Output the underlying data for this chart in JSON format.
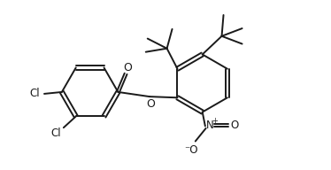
{
  "bg_color": "#ffffff",
  "bond_color": "#1a1a1a",
  "bond_lw": 1.4,
  "font_size": 8.0,
  "figsize": [
    3.74,
    1.92
  ],
  "dpi": 100,
  "xlim": [
    0,
    9.0
  ],
  "ylim": [
    0,
    4.8
  ]
}
